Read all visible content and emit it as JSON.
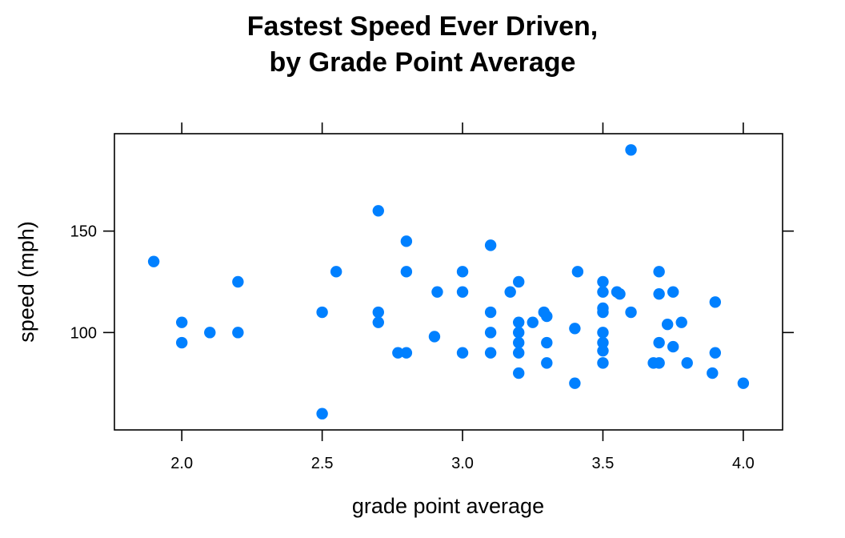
{
  "chart_data": {
    "type": "scatter",
    "title": "Fastest Speed Ever Driven,",
    "subtitle": "by Grade Point Average",
    "xlabel": "grade point average",
    "ylabel": "speed (mph)",
    "xlim": [
      1.76,
      4.14
    ],
    "ylim": [
      52,
      198
    ],
    "xticks": [
      2.0,
      2.5,
      3.0,
      3.5,
      4.0
    ],
    "xtick_labels": [
      "2.0",
      "2.5",
      "3.0",
      "3.5",
      "4.0"
    ],
    "yticks": [
      100,
      150
    ],
    "ytick_labels": [
      "100",
      "150"
    ],
    "grid": false,
    "point_color": "#0080ff",
    "x": [
      1.9,
      2.0,
      2.0,
      2.1,
      2.2,
      2.2,
      2.5,
      2.5,
      2.55,
      2.7,
      2.7,
      2.7,
      2.77,
      2.8,
      2.8,
      2.8,
      2.9,
      2.91,
      3.0,
      3.0,
      3.0,
      3.1,
      3.1,
      3.1,
      3.1,
      3.17,
      3.2,
      3.2,
      3.2,
      3.2,
      3.2,
      3.2,
      3.25,
      3.29,
      3.3,
      3.3,
      3.3,
      3.4,
      3.4,
      3.41,
      3.5,
      3.5,
      3.5,
      3.5,
      3.5,
      3.5,
      3.5,
      3.5,
      3.55,
      3.56,
      3.6,
      3.6,
      3.68,
      3.7,
      3.7,
      3.7,
      3.7,
      3.73,
      3.75,
      3.75,
      3.78,
      3.8,
      3.89,
      3.9,
      3.9,
      4.0
    ],
    "y": [
      135,
      105,
      95,
      100,
      125,
      100,
      110,
      60,
      130,
      160,
      110,
      105,
      90,
      145,
      130,
      90,
      98,
      120,
      130,
      120,
      90,
      143,
      110,
      100,
      90,
      120,
      125,
      105,
      100,
      95,
      90,
      80,
      105,
      110,
      108,
      95,
      85,
      102,
      75,
      130,
      125,
      112,
      110,
      100,
      95,
      91,
      85,
      120,
      120,
      119,
      190,
      110,
      85,
      130,
      119,
      95,
      85,
      104,
      120,
      93,
      105,
      85,
      80,
      115,
      90,
      75
    ]
  }
}
